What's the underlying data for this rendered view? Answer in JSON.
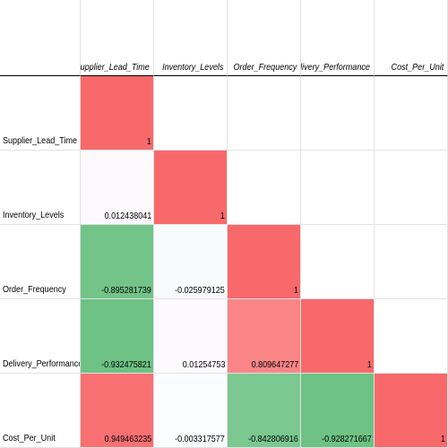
{
  "chart_data": {
    "type": "heatmap",
    "title": "",
    "xlabel": "",
    "ylabel": "",
    "variables": [
      "Supplier_Lead_Time",
      "Inventory_Levels",
      "Order_Frequency",
      "Delivery_Performance",
      "Cost_Per_Unit"
    ],
    "matrix": [
      [
        "1",
        null,
        null,
        null,
        null
      ],
      [
        "0.012438041",
        "1",
        null,
        null,
        null
      ],
      [
        "-0.895281739",
        "-0.025979125",
        "1",
        null,
        null
      ],
      [
        "-0.932475821",
        "0.01254753",
        "0.809647277",
        "1",
        null
      ],
      [
        "0.949463235",
        "-0.003317577",
        "-0.842806916",
        "-0.928271667",
        "1"
      ]
    ],
    "colors": {
      "high": "#f8696b",
      "mid": "#fcfcff",
      "low": "#63be7b"
    },
    "color_scale": {
      "min": -1,
      "mid": 0,
      "max": 1
    }
  }
}
